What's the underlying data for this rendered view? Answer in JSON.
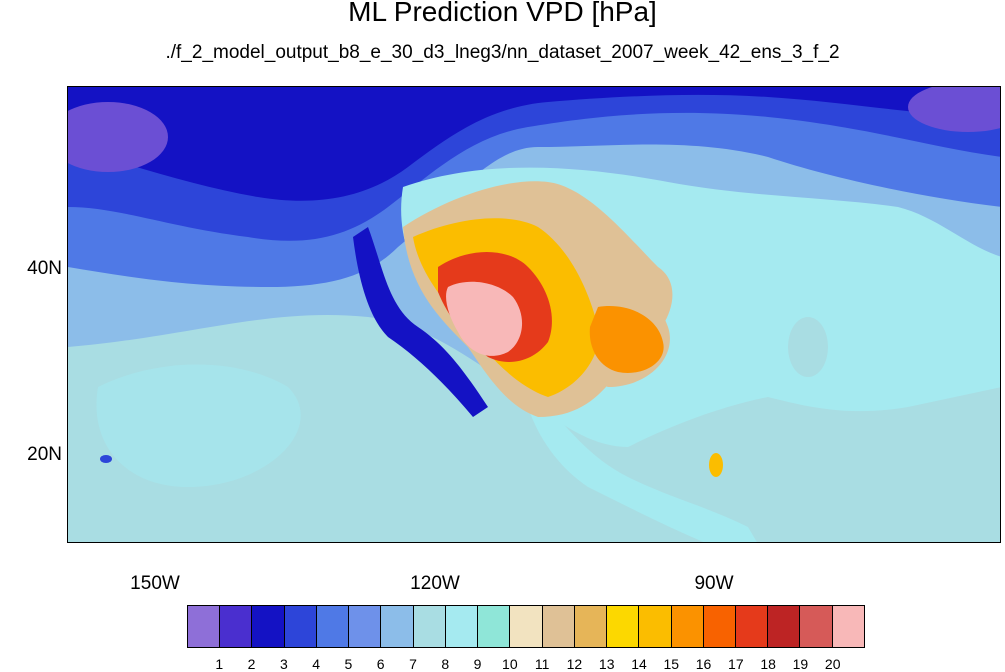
{
  "title": "ML Prediction VPD [hPa]",
  "subtitle": "./f_2_model_output_b8_e_30_d3_lneg3/nn_dataset_2007_week_42_ens_3_f_2",
  "axes": {
    "lon_labels": [
      "150W",
      "120W",
      "90W"
    ],
    "lat_labels": [
      "40N",
      "20N"
    ]
  },
  "colorbar": {
    "labels": [
      "1",
      "2",
      "3",
      "4",
      "5",
      "6",
      "7",
      "8",
      "9",
      "10",
      "11",
      "12",
      "13",
      "14",
      "15",
      "16",
      "17",
      "18",
      "19",
      "20"
    ],
    "colors": [
      "#8e6fd8",
      "#4a2fcf",
      "#1412c4",
      "#2d45d9",
      "#4f79e6",
      "#6e91ea",
      "#8cbde9",
      "#a9dde3",
      "#a5eaf0",
      "#8fe6d8",
      "#f2e3c0",
      "#dfc196",
      "#e6b558",
      "#fcd800",
      "#fbbd00",
      "#fb9200",
      "#f86200",
      "#e53a1b",
      "#bd2424",
      "#d65a58",
      "#f8b8b8"
    ]
  }
}
